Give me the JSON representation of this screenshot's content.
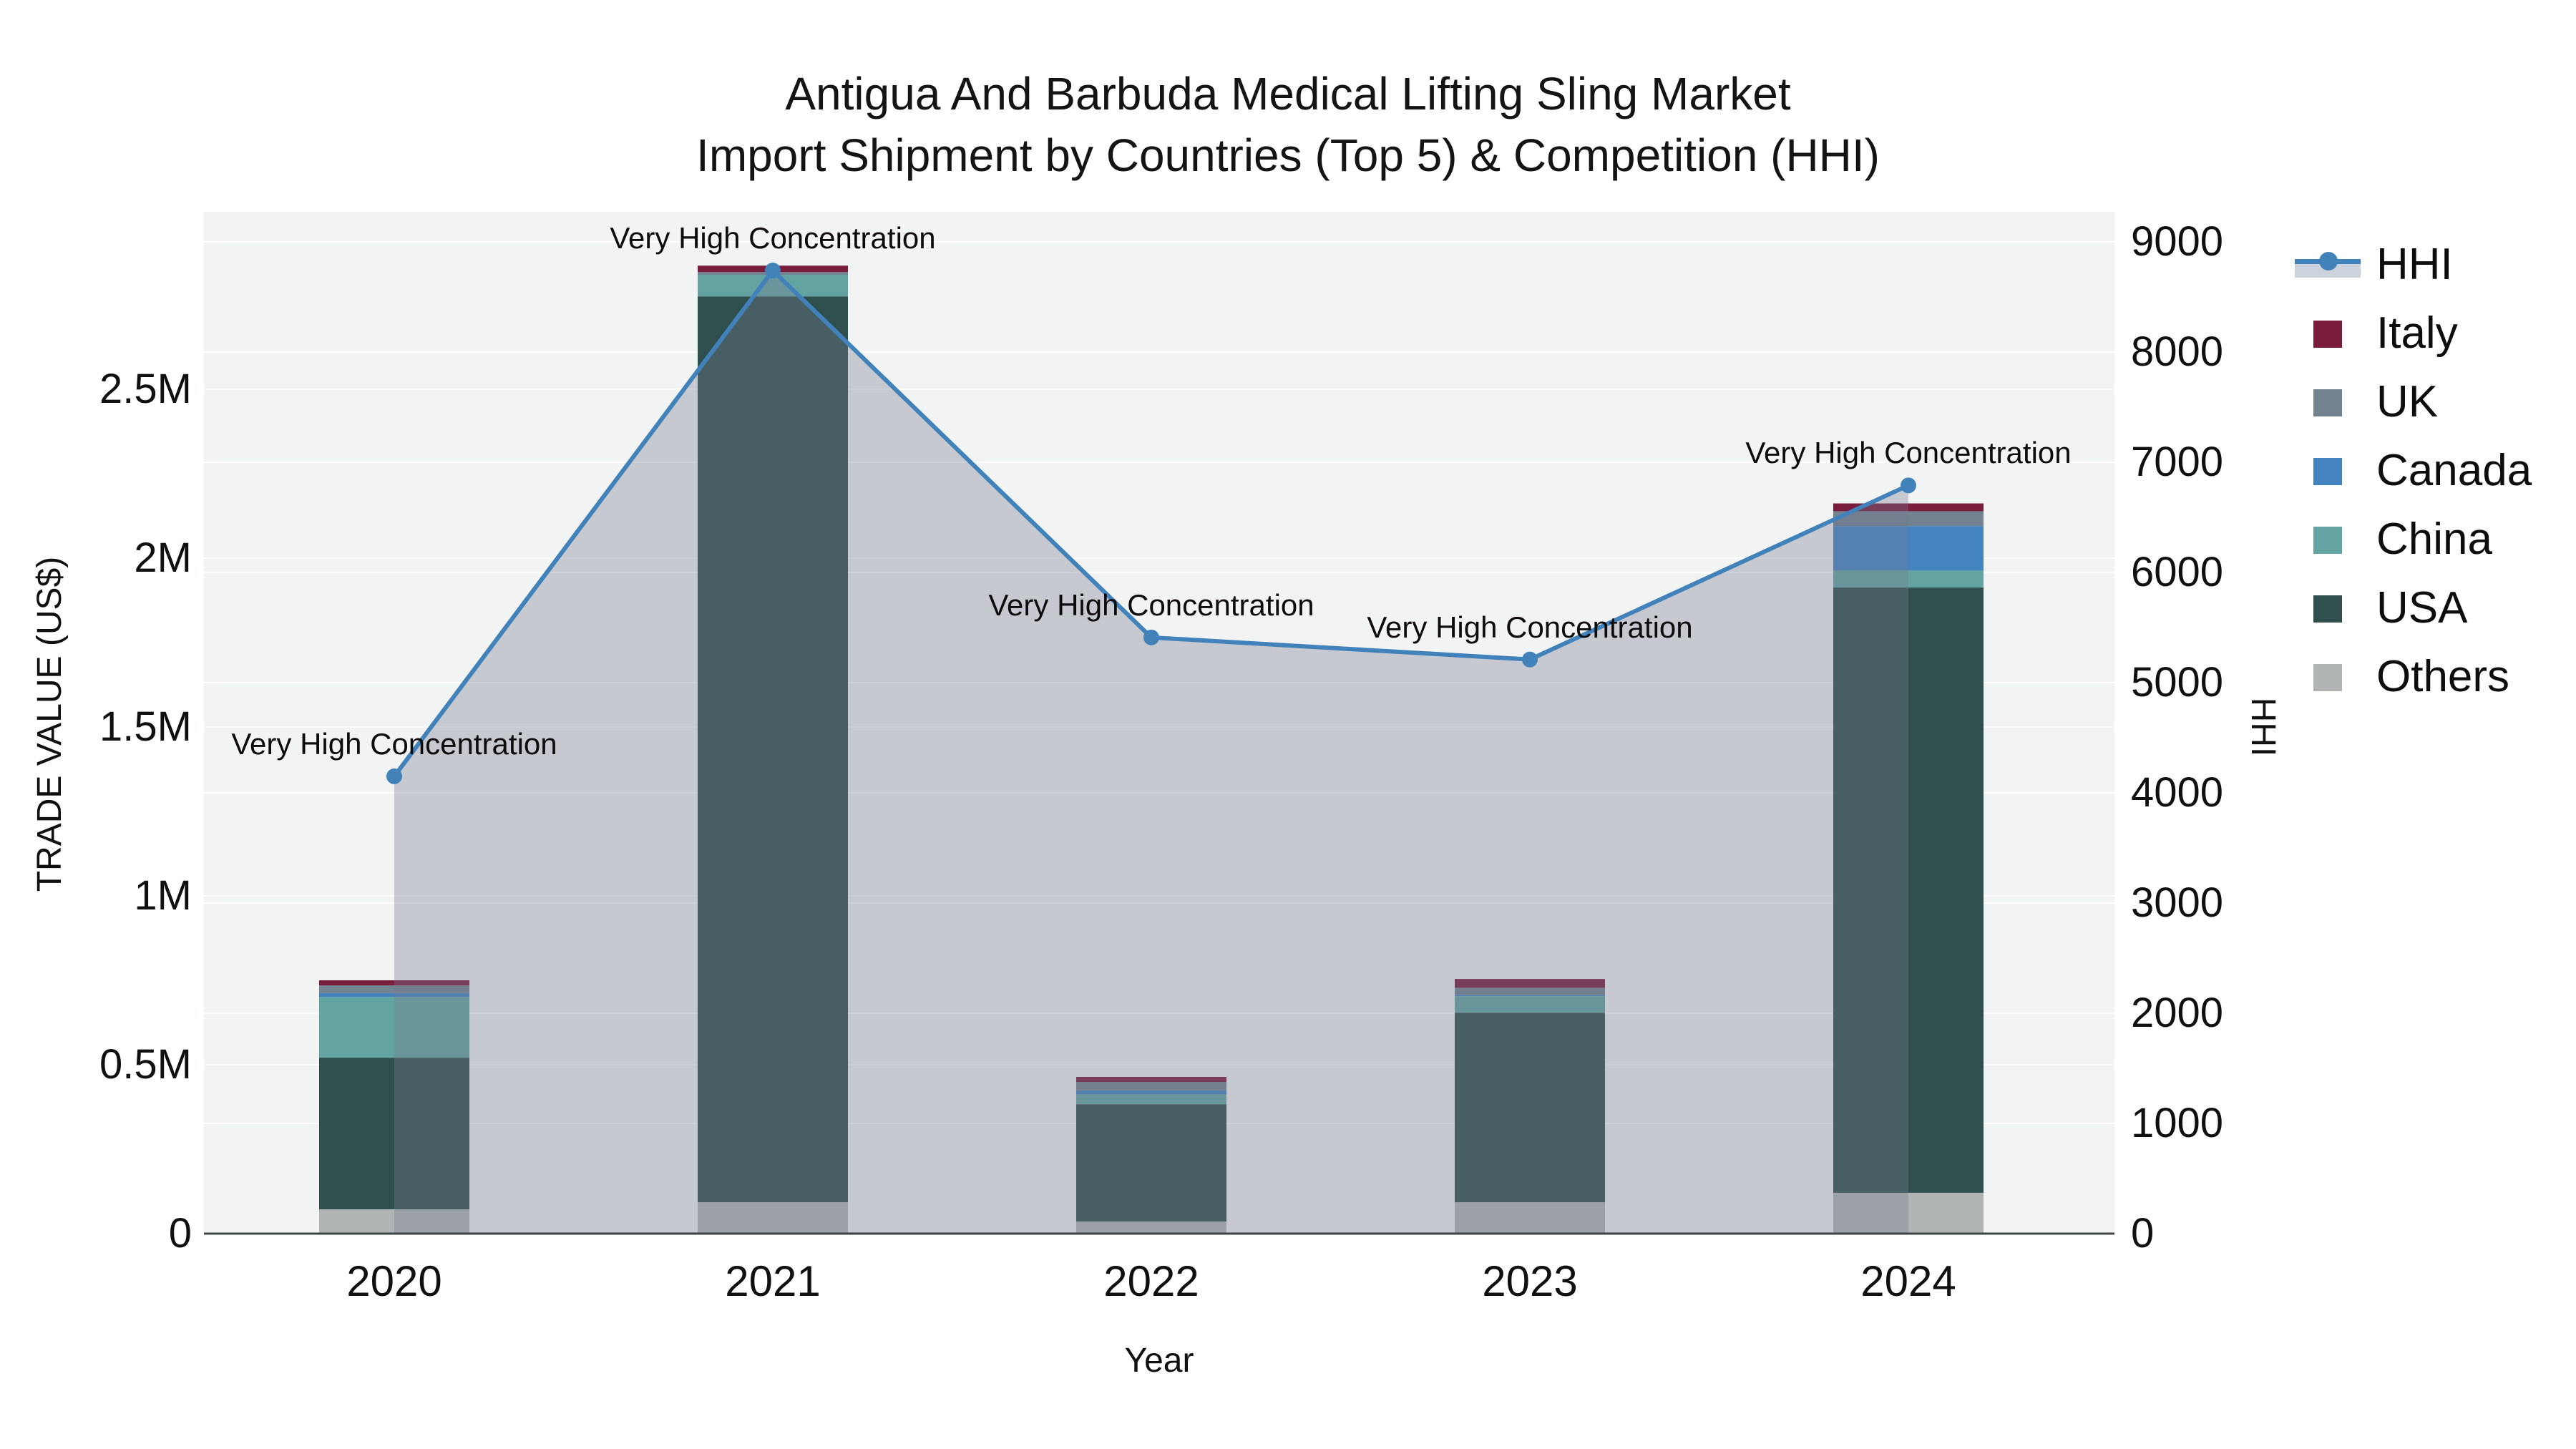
{
  "title": {
    "line1": "Antigua And Barbuda Medical Lifting Sling Market",
    "line2": "Import Shipment by Countries (Top 5) & Competition (HHI)"
  },
  "axes": {
    "left": {
      "title": "TRADE VALUE (US$)",
      "tick_labels": [
        "0",
        "0.5M",
        "1M",
        "1.5M",
        "2M",
        "2.5M"
      ],
      "tick_values": [
        0,
        500000,
        1000000,
        1500000,
        2000000,
        2500000
      ]
    },
    "right": {
      "title": "HHI",
      "tick_labels": [
        "0",
        "1000",
        "2000",
        "3000",
        "4000",
        "5000",
        "6000",
        "7000",
        "8000",
        "9000"
      ],
      "tick_values": [
        0,
        1000,
        2000,
        3000,
        4000,
        5000,
        6000,
        7000,
        8000,
        9000
      ]
    },
    "x": {
      "title": "Year",
      "tick_labels": [
        "2020",
        "2021",
        "2022",
        "2023",
        "2024"
      ]
    }
  },
  "legend": {
    "items": [
      {
        "label": "HHI",
        "type": "line-area",
        "color": "#4282ba",
        "band_color": "#ccd3dc"
      },
      {
        "label": "Italy",
        "type": "swatch",
        "color": "#7a1c3c"
      },
      {
        "label": "UK",
        "type": "swatch",
        "color": "#72828f"
      },
      {
        "label": "Canada",
        "type": "swatch",
        "color": "#4384c0"
      },
      {
        "label": "China",
        "type": "swatch",
        "color": "#63a3a2"
      },
      {
        "label": "USA",
        "type": "swatch",
        "color": "#2f4f4e"
      },
      {
        "label": "Others",
        "type": "swatch",
        "color": "#b1b4b4"
      }
    ]
  },
  "chart_data": {
    "type": "combo: stacked-bar (left axis) + line with area fill (right axis)",
    "categories": [
      "2020",
      "2021",
      "2022",
      "2023",
      "2024"
    ],
    "xlabel": "Year",
    "ylabel_left": "TRADE VALUE (US$)",
    "ylabel_right": "HHI",
    "ylim_left": [
      0,
      3000000
    ],
    "ylim_right": [
      0,
      9270
    ],
    "grid": "faint horizontal gridlines",
    "legend_position": "right",
    "bar_series_bottom_to_top": [
      {
        "name": "Others",
        "color": "#b1b4b4",
        "values": [
          72000,
          93000,
          36000,
          93000,
          121000
        ]
      },
      {
        "name": "USA",
        "color": "#2f4f4e",
        "values": [
          449000,
          2682000,
          347000,
          561000,
          1792000
        ]
      },
      {
        "name": "China",
        "color": "#63a3a2",
        "values": [
          180000,
          64000,
          30000,
          49000,
          51000
        ]
      },
      {
        "name": "Canada",
        "color": "#4384c0",
        "values": [
          11000,
          0,
          11000,
          4000,
          131000
        ]
      },
      {
        "name": "UK",
        "color": "#72828f",
        "values": [
          23000,
          8000,
          25000,
          21000,
          44000
        ]
      },
      {
        "name": "Italy",
        "color": "#7a1c3c",
        "values": [
          15000,
          19000,
          15000,
          26000,
          23000
        ]
      }
    ],
    "bar_totals": [
      750000,
      2866000,
      464000,
      754000,
      2162000
    ],
    "line_series": {
      "name": "HHI",
      "color": "#4282ba",
      "area_fill": "rgba(118,124,142,0.35)",
      "values": [
        4150,
        8740,
        5410,
        5210,
        6790
      ]
    },
    "annotations": [
      {
        "x": "2020",
        "text": "Very High Concentration"
      },
      {
        "x": "2021",
        "text": "Very High Concentration"
      },
      {
        "x": "2022",
        "text": "Very High Concentration"
      },
      {
        "x": "2023",
        "text": "Very High Concentration"
      },
      {
        "x": "2024",
        "text": "Very High Concentration"
      }
    ]
  }
}
